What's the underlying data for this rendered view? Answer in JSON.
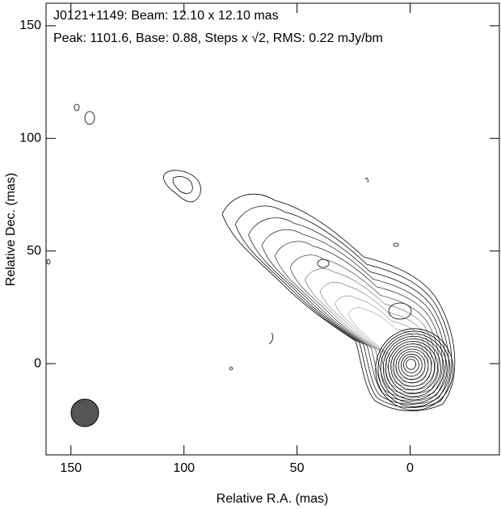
{
  "chart_data": {
    "type": "contour",
    "title": "J0121+1149: Beam: 12.10 x 12.10 mas",
    "subtitle": "Peak: 1101.6, Base: 0.88, Steps x √2, RMS: 0.22 mJy/bm",
    "x_label": "Relative R.A. (mas)",
    "y_label": "Relative Dec. (mas)",
    "xlim": [
      161,
      -39.5
    ],
    "ylim": [
      -40.5,
      160
    ],
    "xticks": [
      150,
      100,
      50,
      0
    ],
    "yticks": [
      0,
      50,
      100,
      150
    ]
  }
}
